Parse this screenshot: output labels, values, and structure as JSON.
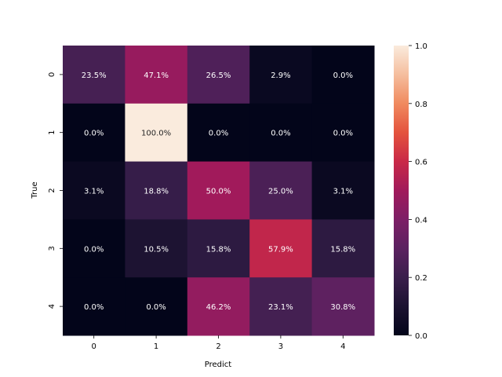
{
  "chart_data": {
    "type": "heatmap",
    "title": "",
    "xlabel": "Predict",
    "ylabel": "True",
    "x_categories": [
      "0",
      "1",
      "2",
      "3",
      "4"
    ],
    "y_categories": [
      "0",
      "1",
      "2",
      "3",
      "4"
    ],
    "values": [
      [
        0.235,
        0.471,
        0.265,
        0.029,
        0.0
      ],
      [
        0.0,
        1.0,
        0.0,
        0.0,
        0.0
      ],
      [
        0.031,
        0.188,
        0.5,
        0.25,
        0.031
      ],
      [
        0.0,
        0.105,
        0.158,
        0.579,
        0.158
      ],
      [
        0.0,
        0.0,
        0.462,
        0.231,
        0.308
      ]
    ],
    "annotations": [
      [
        "23.5%",
        "47.1%",
        "26.5%",
        "2.9%",
        "0.0%"
      ],
      [
        "0.0%",
        "100.0%",
        "0.0%",
        "0.0%",
        "0.0%"
      ],
      [
        "3.1%",
        "18.8%",
        "50.0%",
        "25.0%",
        "3.1%"
      ],
      [
        "0.0%",
        "10.5%",
        "15.8%",
        "57.9%",
        "15.8%"
      ],
      [
        "0.0%",
        "0.0%",
        "46.2%",
        "23.1%",
        "30.8%"
      ]
    ],
    "colorbar": {
      "range": [
        0.0,
        1.0
      ],
      "ticks": [
        "0.0",
        "0.2",
        "0.4",
        "0.6",
        "0.8",
        "1.0"
      ],
      "colormap": "rocket"
    },
    "grid": false,
    "legend": "colorbar-right"
  }
}
